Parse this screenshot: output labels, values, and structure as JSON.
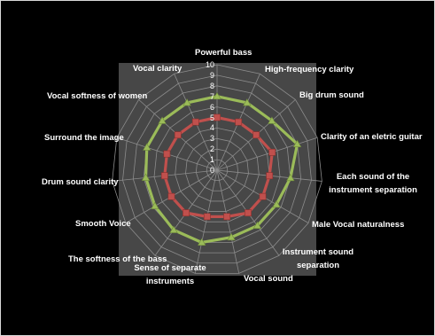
{
  "chart_data": {
    "type": "radar",
    "title": "",
    "axis_range": [
      0,
      10
    ],
    "tick_labels": [
      "0",
      "1",
      "2",
      "3",
      "4",
      "5",
      "6",
      "7",
      "8",
      "9",
      "10"
    ],
    "categories": [
      "Powerful bass",
      "High-frequency clarity",
      "Big drum sound",
      "Clarity of an eletric guitar",
      "Each sound of the instrument separation",
      "Male Vocal naturalness",
      "Instrument sound separation",
      "Vocal sound",
      "Sense of separate instruments",
      "The softness of the bass",
      "Smooth Voice",
      "Drum sound clarity",
      "Surround the image",
      "Vocal softness of women",
      "Vocal clarity"
    ],
    "series": [
      {
        "name": "",
        "color": "#9bbb59",
        "marker": "triangle",
        "values": [
          7,
          7,
          7,
          8,
          7,
          6.5,
          6.5,
          6.5,
          7,
          7,
          6.8,
          6.8,
          7,
          7,
          7
        ]
      },
      {
        "name": "",
        "color": "#c0504d",
        "marker": "square",
        "values": [
          5,
          5,
          5,
          5.5,
          5,
          5,
          5,
          4.5,
          4.5,
          5,
          5,
          5,
          5,
          5,
          5
        ]
      }
    ],
    "grid": true,
    "legend": "none"
  }
}
